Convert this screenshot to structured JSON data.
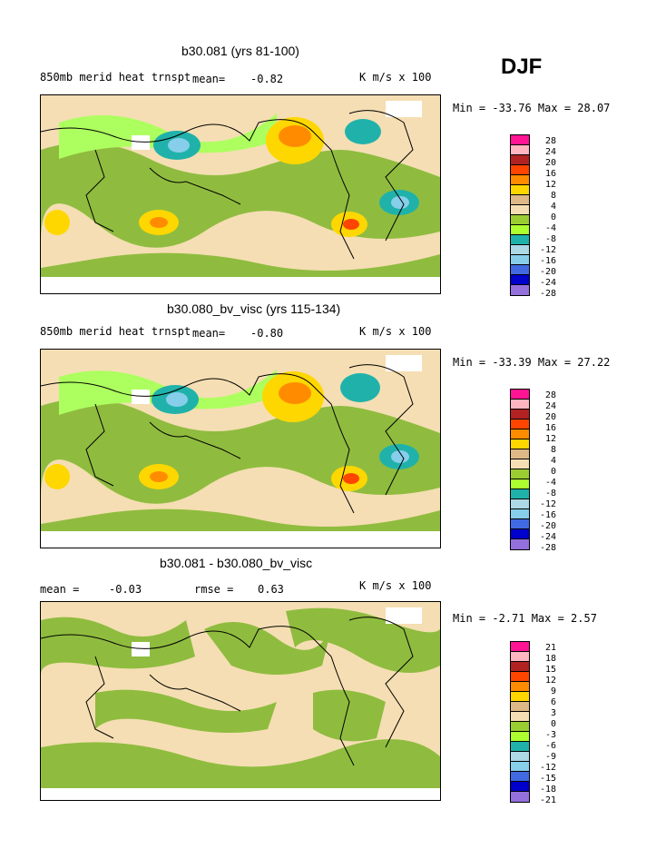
{
  "season": "DJF",
  "panels": [
    {
      "title": "b30.081 (yrs 81-100)",
      "left_label": "850mb merid heat trnspt",
      "mean_label": "mean=",
      "mean_value": "-0.82",
      "units": "K m/s x 100",
      "minmax": "Min = -33.76 Max =  28.07",
      "colorbar_ticks": [
        "28",
        "24",
        "20",
        "16",
        "12",
        "8",
        "4",
        "0",
        "-4",
        "-8",
        "-12",
        "-16",
        "-20",
        "-24",
        "-28"
      ]
    },
    {
      "title": "b30.080_bv_visc (yrs 115-134)",
      "left_label": "850mb merid heat trnspt",
      "mean_label": "mean=",
      "mean_value": "-0.80",
      "units": "K m/s x 100",
      "minmax": "Min = -33.39 Max =  27.22",
      "colorbar_ticks": [
        "28",
        "24",
        "20",
        "16",
        "12",
        "8",
        "4",
        "0",
        "-4",
        "-8",
        "-12",
        "-16",
        "-20",
        "-24",
        "-28"
      ]
    },
    {
      "title": "b30.081 - b30.080_bv_visc",
      "left_label": "mean =",
      "mean_value": "-0.03",
      "rmse_label": "rmse =",
      "rmse_value": "0.63",
      "units": "K m/s x 100",
      "minmax": "Min =  -2.71 Max =   2.57",
      "colorbar_ticks": [
        "21",
        "18",
        "15",
        "12",
        "9",
        "6",
        "3",
        "0",
        "-3",
        "-6",
        "-9",
        "-12",
        "-15",
        "-18",
        "-21"
      ]
    }
  ],
  "colors": {
    "scale": [
      "#ff1493",
      "#ffb6c1",
      "#b22222",
      "#ff4500",
      "#ff8c00",
      "#ffd700",
      "#deb887",
      "#f5deb3",
      "#9acd32",
      "#adff2f",
      "#20b2aa",
      "#add8e6",
      "#87ceeb",
      "#4169e1",
      "#0000cd",
      "#9370db"
    ],
    "map_bg": "#f5deb3",
    "green": "#8fbc3f",
    "light_green": "#adff5f",
    "coast": "#000000"
  },
  "chart_data": [
    {
      "type": "heatmap",
      "title": "b30.081 (yrs 81-100)",
      "field": "850mb merid heat trnspt",
      "season": "DJF",
      "mean": -0.82,
      "min": -33.76,
      "max": 28.07,
      "units": "K m/s x 100",
      "levels": [
        28,
        24,
        20,
        16,
        12,
        8,
        4,
        0,
        -4,
        -8,
        -12,
        -16,
        -20,
        -24,
        -28
      ]
    },
    {
      "type": "heatmap",
      "title": "b30.080_bv_visc (yrs 115-134)",
      "field": "850mb merid heat trnspt",
      "season": "DJF",
      "mean": -0.8,
      "min": -33.39,
      "max": 27.22,
      "units": "K m/s x 100",
      "levels": [
        28,
        24,
        20,
        16,
        12,
        8,
        4,
        0,
        -4,
        -8,
        -12,
        -16,
        -20,
        -24,
        -28
      ]
    },
    {
      "type": "heatmap",
      "title": "b30.081 - b30.080_bv_visc",
      "season": "DJF",
      "mean": -0.03,
      "rmse": 0.63,
      "min": -2.71,
      "max": 2.57,
      "units": "K m/s x 100",
      "levels": [
        21,
        18,
        15,
        12,
        9,
        6,
        3,
        0,
        -3,
        -6,
        -9,
        -12,
        -15,
        -18,
        -21
      ]
    }
  ]
}
